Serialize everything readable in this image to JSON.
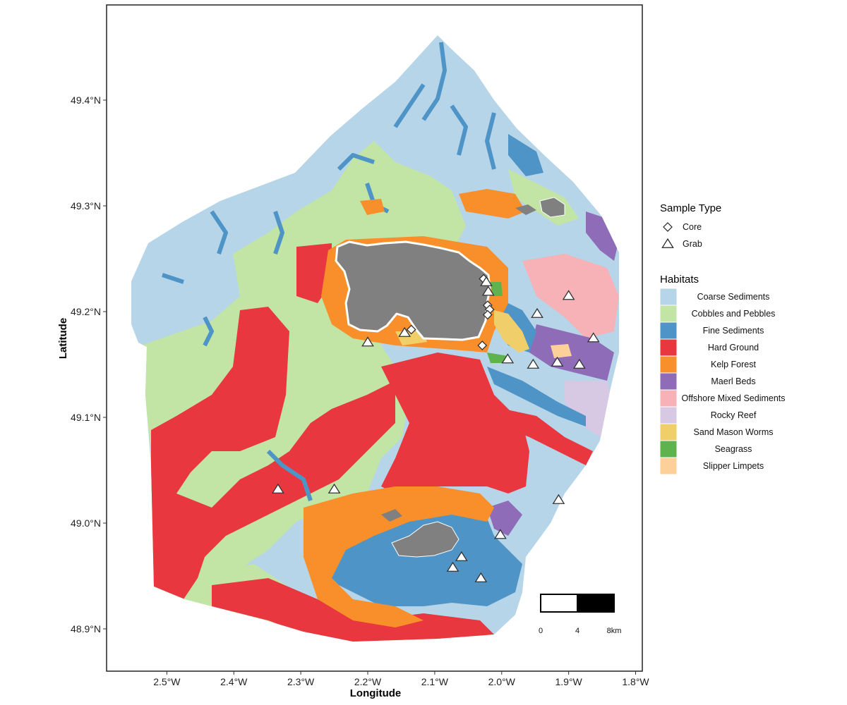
{
  "chart_data": {
    "type": "map",
    "xlabel": "Longitude",
    "ylabel": "Latitude",
    "xlim": [
      -2.59,
      -1.79
    ],
    "ylim": [
      48.86,
      49.49
    ],
    "x_ticks": [
      {
        "value": -2.5,
        "label": "2.5°W"
      },
      {
        "value": -2.4,
        "label": "2.4°W"
      },
      {
        "value": -2.3,
        "label": "2.3°W"
      },
      {
        "value": -2.2,
        "label": "2.2°W"
      },
      {
        "value": -2.1,
        "label": "2.1°W"
      },
      {
        "value": -2.0,
        "label": "2.0°W"
      },
      {
        "value": -1.9,
        "label": "1.9°W"
      },
      {
        "value": -1.8,
        "label": "1.8°W"
      }
    ],
    "y_ticks": [
      {
        "value": 48.9,
        "label": "48.9°N"
      },
      {
        "value": 49.0,
        "label": "49.0°N"
      },
      {
        "value": 49.1,
        "label": "49.1°N"
      },
      {
        "value": 49.2,
        "label": "49.2°N"
      },
      {
        "value": 49.3,
        "label": "49.3°N"
      },
      {
        "value": 49.4,
        "label": "49.4°N"
      }
    ],
    "grid": false,
    "sample_legend": {
      "title": "Sample Type",
      "items": [
        {
          "label": "Core",
          "shape": "diamond"
        },
        {
          "label": "Grab",
          "shape": "triangle"
        }
      ]
    },
    "habitat_legend": {
      "title": "Habitats",
      "items": [
        {
          "label": "Coarse Sediments",
          "color": "#b6d5e8"
        },
        {
          "label": "Cobbles and Pebbles",
          "color": "#c2e5a5"
        },
        {
          "label": "Fine Sediments",
          "color": "#4f94c6"
        },
        {
          "label": "Hard Ground",
          "color": "#e8373f"
        },
        {
          "label": "Kelp Forest",
          "color": "#f98f2b"
        },
        {
          "label": "Maerl Beds",
          "color": "#8e6cb8"
        },
        {
          "label": "Offshore Mixed Sediments",
          "color": "#f7b2b8"
        },
        {
          "label": "Rocky Reef",
          "color": "#d7c8e3"
        },
        {
          "label": "Sand Mason Worms",
          "color": "#f0cf6a"
        },
        {
          "label": "Seagrass",
          "color": "#5fb34e"
        },
        {
          "label": "Slipper Limpets",
          "color": "#fdd09a"
        }
      ]
    },
    "land_color": "#808080",
    "samples": [
      {
        "type": "core",
        "lon": -2.135,
        "lat": 49.183
      },
      {
        "type": "core",
        "lon": -2.027,
        "lat": 49.231
      },
      {
        "type": "core",
        "lon": -2.021,
        "lat": 49.206
      },
      {
        "type": "core",
        "lon": -2.018,
        "lat": 49.202
      },
      {
        "type": "core",
        "lon": -2.021,
        "lat": 49.197
      },
      {
        "type": "core",
        "lon": -2.029,
        "lat": 49.168
      },
      {
        "type": "grab",
        "lon": -2.023,
        "lat": 49.228
      },
      {
        "type": "grab",
        "lon": -2.02,
        "lat": 49.219
      },
      {
        "type": "grab",
        "lon": -2.2,
        "lat": 49.171
      },
      {
        "type": "grab",
        "lon": -2.145,
        "lat": 49.18
      },
      {
        "type": "grab",
        "lon": -1.991,
        "lat": 49.155
      },
      {
        "type": "grab",
        "lon": -1.947,
        "lat": 49.198
      },
      {
        "type": "grab",
        "lon": -1.9,
        "lat": 49.215
      },
      {
        "type": "grab",
        "lon": -1.863,
        "lat": 49.175
      },
      {
        "type": "grab",
        "lon": -1.953,
        "lat": 49.15
      },
      {
        "type": "grab",
        "lon": -1.917,
        "lat": 49.152
      },
      {
        "type": "grab",
        "lon": -1.884,
        "lat": 49.15
      },
      {
        "type": "grab",
        "lon": -2.334,
        "lat": 49.032
      },
      {
        "type": "grab",
        "lon": -2.25,
        "lat": 49.032
      },
      {
        "type": "grab",
        "lon": -1.915,
        "lat": 49.022
      },
      {
        "type": "grab",
        "lon": -2.002,
        "lat": 48.989
      },
      {
        "type": "grab",
        "lon": -2.06,
        "lat": 48.968
      },
      {
        "type": "grab",
        "lon": -2.073,
        "lat": 48.958
      },
      {
        "type": "grab",
        "lon": -2.031,
        "lat": 48.948
      }
    ],
    "scale_bar": {
      "labels": [
        "0",
        "4",
        "8km"
      ]
    }
  }
}
